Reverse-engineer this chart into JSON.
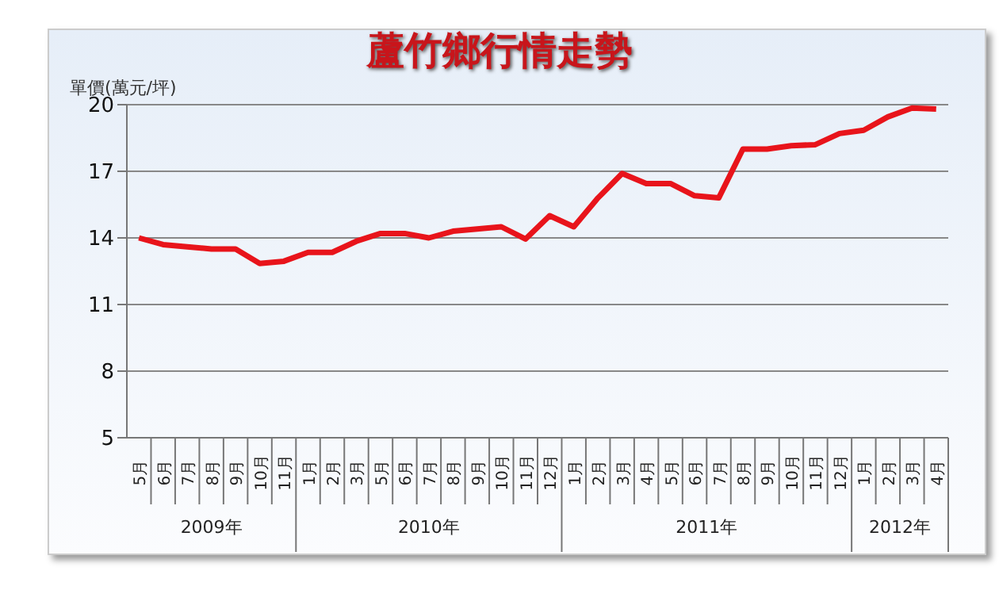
{
  "chart_data": {
    "type": "line",
    "title": "蘆竹鄉行情走勢",
    "ylabel": "單價(萬元/坪)",
    "categories": [
      "5月",
      "6月",
      "7月",
      "8月",
      "9月",
      "10月",
      "11月",
      "1月",
      "2月",
      "3月",
      "5月",
      "6月",
      "7月",
      "8月",
      "9月",
      "10月",
      "11月",
      "12月",
      "1月",
      "2月",
      "3月",
      "4月",
      "5月",
      "6月",
      "7月",
      "8月",
      "9月",
      "10月",
      "11月",
      "12月",
      "1月",
      "2月",
      "3月",
      "4月"
    ],
    "annotations": [
      "2009年",
      "2010年",
      "2011年",
      "2012年"
    ],
    "series": [
      {
        "color": "#e8141b",
        "values": [
          14.0,
          13.7,
          13.6,
          13.5,
          13.5,
          12.85,
          12.95,
          13.35,
          13.35,
          13.85,
          14.2,
          14.2,
          14.0,
          14.3,
          14.4,
          14.5,
          13.95,
          15.0,
          14.5,
          15.8,
          16.9,
          16.45,
          16.45,
          15.9,
          15.8,
          18.0,
          18.0,
          18.15,
          18.2,
          18.7,
          18.85,
          19.45,
          19.85,
          19.8
        ]
      }
    ],
    "ylim": [
      5,
      20
    ],
    "yticks": [
      5,
      8,
      11,
      14,
      17,
      20
    ],
    "grid": "y",
    "marker": "none",
    "line_style": "solid"
  }
}
